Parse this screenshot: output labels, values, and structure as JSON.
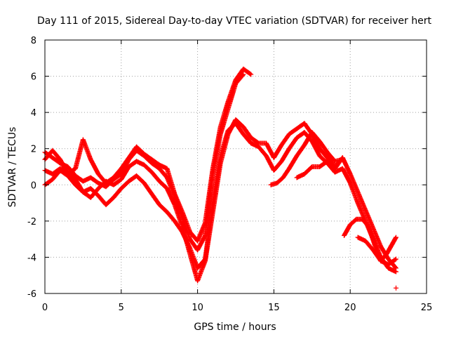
{
  "chart_data": {
    "type": "scatter",
    "title": "Day 111 of 2015, Sidereal Day-to-day VTEC variation (SDTVAR) for receiver hert",
    "xlabel": "GPS time / hours",
    "ylabel": "SDTVAR / TECUs",
    "xlim": [
      0,
      25
    ],
    "ylim": [
      -6,
      8
    ],
    "xticks": [
      0,
      5,
      10,
      15,
      20,
      25
    ],
    "yticks": [
      -6,
      -4,
      -2,
      0,
      2,
      4,
      6,
      8
    ],
    "grid": true,
    "legend": "none",
    "marker": "plus",
    "color": "#ff0000",
    "series": [
      {
        "x": [
          0,
          0.5,
          1,
          1.5,
          2,
          2.5,
          3,
          3.5,
          4,
          4.5,
          5,
          5.5,
          6,
          6.5,
          7,
          7.5,
          8,
          8.5,
          9,
          9.5,
          10,
          10.5,
          11,
          11.5,
          12,
          12.5,
          13
        ],
        "y": [
          1.8,
          1.5,
          1.2,
          1.0,
          0.5,
          0.2,
          0.4,
          0.1,
          -0.1,
          0.3,
          0.6,
          1.4,
          1.9,
          1.6,
          1.2,
          0.9,
          0.4,
          -0.6,
          -1.8,
          -3.0,
          -3.6,
          -2.8,
          0.6,
          2.8,
          4.2,
          5.6,
          6.1
        ]
      },
      {
        "x": [
          0,
          0.5,
          1,
          1.5,
          2,
          2.5,
          3,
          3.5,
          4,
          4.5,
          5,
          5.5,
          6,
          6.5,
          7,
          7.5,
          8,
          8.5,
          9,
          9.5,
          10,
          10.5,
          11,
          11.5,
          12,
          12.5,
          13,
          13.5
        ],
        "y": [
          1.4,
          1.9,
          1.4,
          0.6,
          0.9,
          2.5,
          1.4,
          0.6,
          0.1,
          0.4,
          0.9,
          1.5,
          2.1,
          1.7,
          1.4,
          1.1,
          0.9,
          -0.5,
          -1.5,
          -2.6,
          -3.1,
          -2.1,
          0.9,
          3.2,
          4.6,
          5.8,
          6.4,
          6.1
        ]
      },
      {
        "x": [
          0,
          0.5,
          1,
          1.5,
          2,
          2.5,
          3,
          3.5,
          4,
          4.5,
          5,
          5.5,
          6,
          6.5,
          7,
          7.5,
          8,
          8.5,
          9,
          9.5,
          10,
          10.5,
          11,
          11.5,
          12,
          12.5,
          13,
          13.5,
          14,
          14.5,
          15,
          15.5,
          16,
          16.5,
          17,
          17.5,
          18,
          18.5,
          19,
          19.5,
          20,
          20.5,
          21,
          21.5,
          22,
          22.5,
          23
        ],
        "y": [
          0.8,
          0.6,
          0.9,
          0.7,
          0.3,
          -0.4,
          -0.7,
          -0.2,
          0.2,
          0.0,
          0.3,
          1.0,
          1.3,
          1.1,
          0.7,
          0.2,
          -0.2,
          -1.1,
          -2.3,
          -3.8,
          -5.3,
          -4.2,
          -1.5,
          1.2,
          2.8,
          3.6,
          3.2,
          2.6,
          2.3,
          2.3,
          1.5,
          2.2,
          2.8,
          3.1,
          3.4,
          2.8,
          2.0,
          1.5,
          1.0,
          1.5,
          0.6,
          -0.4,
          -1.4,
          -2.4,
          -3.4,
          -4.1,
          -4.6
        ]
      },
      {
        "x": [
          0,
          0.5,
          1,
          1.5,
          2,
          2.5,
          3,
          3.5,
          4,
          4.5,
          5,
          5.5,
          6,
          6.5,
          7,
          7.5,
          8,
          8.5,
          9,
          9.5,
          10,
          10.5,
          11,
          11.5,
          12,
          12.5,
          13,
          13.5,
          14,
          14.5,
          15,
          15.5,
          16,
          16.5,
          17,
          17.5,
          18,
          18.5,
          19,
          19.5,
          20,
          20.5,
          21,
          21.5,
          22,
          22.5,
          23
        ],
        "y": [
          0.0,
          0.3,
          0.8,
          0.5,
          0.0,
          -0.4,
          -0.2,
          -0.6,
          -1.1,
          -0.7,
          -0.2,
          0.2,
          0.5,
          0.1,
          -0.5,
          -1.1,
          -1.5,
          -2.0,
          -2.6,
          -3.5,
          -4.6,
          -4.1,
          -1.0,
          1.6,
          3.0,
          3.4,
          2.8,
          2.3,
          2.1,
          1.6,
          0.8,
          1.3,
          2.0,
          2.6,
          2.9,
          2.4,
          1.6,
          1.2,
          0.7,
          0.9,
          0.1,
          -1.0,
          -2.0,
          -3.0,
          -4.0,
          -4.6,
          -4.8
        ]
      },
      {
        "x": [
          14.8,
          15.2,
          15.6,
          16.0,
          16.5,
          17.0,
          17.5,
          18.0,
          18.5,
          19.0,
          19.5
        ],
        "y": [
          0.0,
          0.1,
          0.4,
          0.9,
          1.6,
          2.2,
          2.9,
          2.4,
          1.8,
          1.3,
          1.4
        ]
      },
      {
        "x": [
          16.5,
          17.0,
          17.5,
          18.0,
          18.5,
          19.0,
          19.5
        ],
        "y": [
          0.4,
          0.6,
          1.0,
          1.0,
          1.3,
          0.9,
          1.5
        ]
      },
      {
        "x": [
          19.6,
          20.0,
          20.4,
          20.8,
          21.2,
          21.6,
          22.0,
          22.4,
          22.8,
          23.0
        ],
        "y": [
          -2.8,
          -2.2,
          -1.9,
          -1.9,
          -2.3,
          -3.3,
          -4.2,
          -3.8,
          -3.2,
          -2.9
        ]
      },
      {
        "x": [
          20.5,
          21.0,
          21.5,
          22.0,
          22.5,
          23.0
        ],
        "y": [
          -2.9,
          -3.1,
          -3.6,
          -4.2,
          -4.4,
          -4.1
        ]
      },
      {
        "x": [
          23.0
        ],
        "y": [
          -5.7
        ]
      }
    ]
  }
}
